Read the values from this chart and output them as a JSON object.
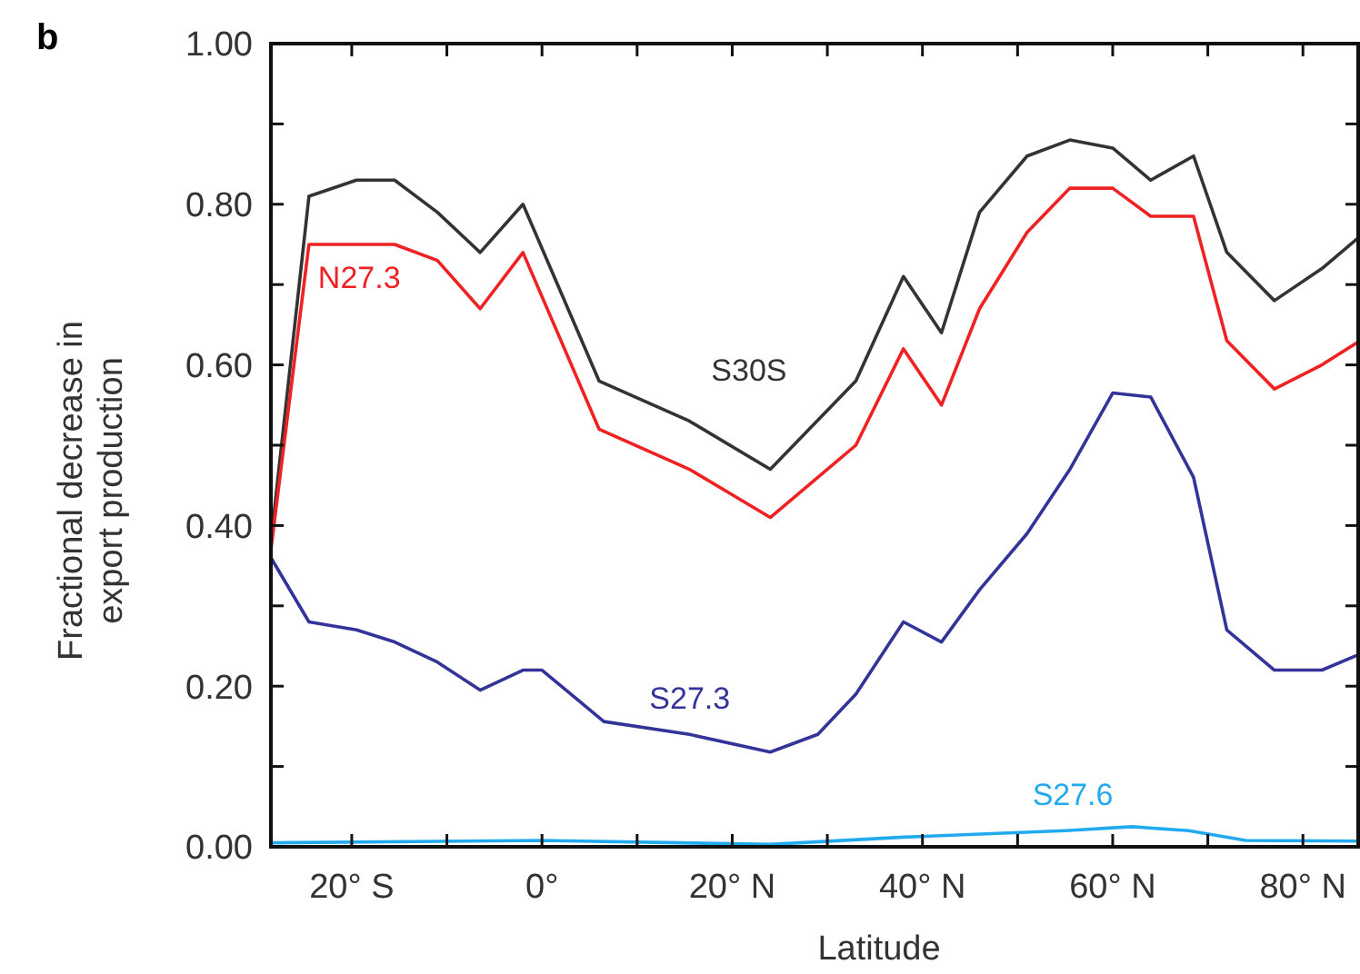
{
  "chart_data": {
    "type": "line",
    "title": "b",
    "xlabel": "Latitude",
    "ylabel": "Fractional decrease in\nexport production",
    "xlim": [
      -28.5,
      86
    ],
    "ylim": [
      0,
      1
    ],
    "xticks": [
      {
        "value": -20,
        "label": "20° S"
      },
      {
        "value": -10,
        "label": null
      },
      {
        "value": 0,
        "label": "0°"
      },
      {
        "value": 10,
        "label": null
      },
      {
        "value": 20,
        "label": "20° N"
      },
      {
        "value": 30,
        "label": null
      },
      {
        "value": 40,
        "label": "40° N"
      },
      {
        "value": 50,
        "label": null
      },
      {
        "value": 60,
        "label": "60° N"
      },
      {
        "value": 70,
        "label": null
      },
      {
        "value": 80,
        "label": "80° N"
      }
    ],
    "yticks": [
      {
        "value": 0,
        "label": "0.00"
      },
      {
        "value": 0.1,
        "label": null
      },
      {
        "value": 0.2,
        "label": "0.20"
      },
      {
        "value": 0.3,
        "label": null
      },
      {
        "value": 0.4,
        "label": "0.40"
      },
      {
        "value": 0.5,
        "label": null
      },
      {
        "value": 0.6,
        "label": "0.60"
      },
      {
        "value": 0.7,
        "label": null
      },
      {
        "value": 0.8,
        "label": "0.80"
      },
      {
        "value": 0.9,
        "label": null
      },
      {
        "value": 1,
        "label": "1.00"
      }
    ],
    "grid": false,
    "marker": "none",
    "line_style": "solid",
    "series": [
      {
        "name": "S30S",
        "color": "#333333",
        "x": [
          -28.5,
          -24.5,
          -19.5,
          -15.5,
          -11,
          -6.5,
          -2,
          6,
          15.5,
          24,
          33,
          38,
          42,
          46,
          51,
          55.5,
          60,
          64,
          68.5,
          72,
          77,
          82,
          86
        ],
        "values": [
          0.38,
          0.81,
          0.83,
          0.83,
          0.79,
          0.74,
          0.8,
          0.58,
          0.53,
          0.47,
          0.58,
          0.71,
          0.64,
          0.79,
          0.86,
          0.88,
          0.87,
          0.83,
          0.86,
          0.74,
          0.68,
          0.72,
          0.76
        ]
      },
      {
        "name": "N27.3",
        "color": "#ee2222",
        "x": [
          -28.5,
          -24.5,
          -19.5,
          -15.5,
          -11,
          -6.5,
          -2,
          6,
          15.5,
          24,
          33,
          38,
          42,
          46,
          51,
          55.5,
          60,
          64,
          68.5,
          72,
          77,
          82,
          86
        ],
        "values": [
          0.37,
          0.75,
          0.75,
          0.75,
          0.73,
          0.67,
          0.74,
          0.52,
          0.47,
          0.41,
          0.5,
          0.62,
          0.55,
          0.67,
          0.765,
          0.82,
          0.82,
          0.785,
          0.785,
          0.63,
          0.57,
          0.6,
          0.63
        ]
      },
      {
        "name": "S27.3",
        "color": "#333399",
        "x": [
          -28.5,
          -24.5,
          -19.5,
          -15.5,
          -11,
          -6.5,
          -2,
          0,
          6.5,
          15.5,
          24,
          29,
          33,
          38,
          42,
          46,
          51,
          55.5,
          60,
          64,
          68.5,
          72,
          77,
          82,
          86
        ],
        "values": [
          0.36,
          0.28,
          0.27,
          0.255,
          0.23,
          0.195,
          0.22,
          0.22,
          0.156,
          0.14,
          0.118,
          0.14,
          0.19,
          0.28,
          0.255,
          0.32,
          0.39,
          0.47,
          0.565,
          0.56,
          0.46,
          0.27,
          0.22,
          0.22,
          0.24
        ]
      },
      {
        "name": "S27.6",
        "color": "#22aaee",
        "x": [
          -28.5,
          0,
          24,
          38,
          55,
          62,
          68,
          74,
          86
        ],
        "values": [
          0.005,
          0.008,
          0.003,
          0.012,
          0.02,
          0.025,
          0.02,
          0.008,
          0.007
        ]
      }
    ]
  }
}
